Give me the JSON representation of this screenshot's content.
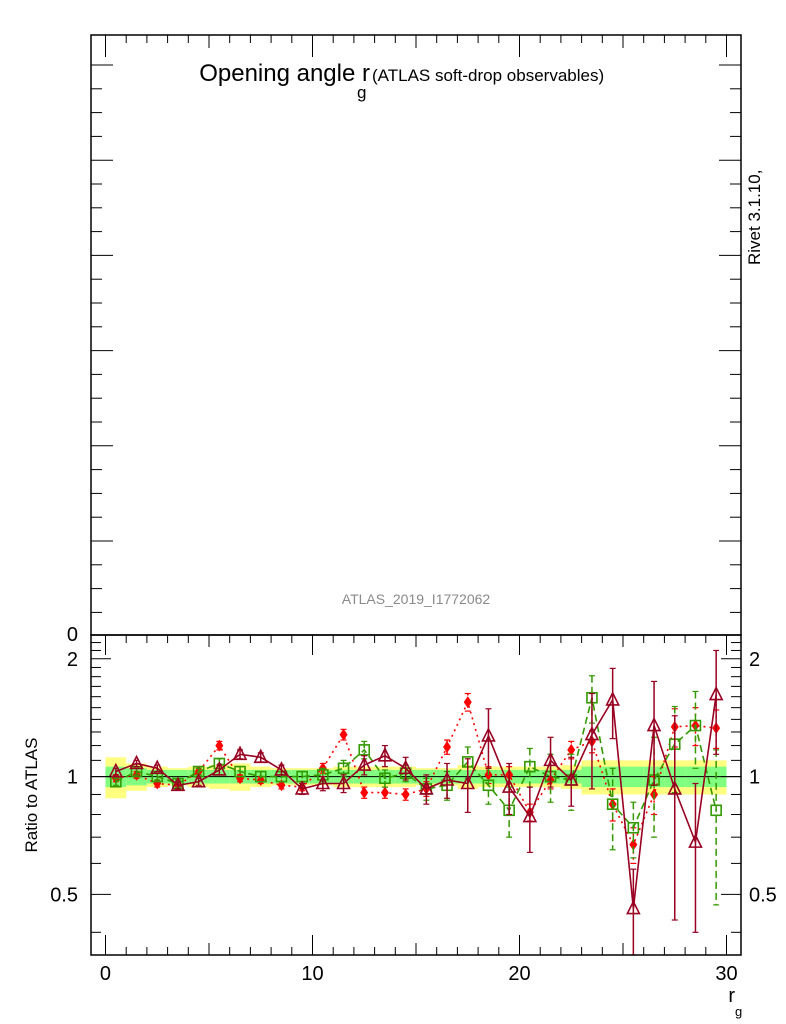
{
  "title": {
    "main": "Opening angle r",
    "sub": "g",
    "note": "(ATLAS soft-drop observables)"
  },
  "watermark": "ATLAS_2019_I1772062",
  "side_label": "Rivet 3.1.10,",
  "top_panel": {
    "ytick_label": "0"
  },
  "colors": {
    "band_outer": "#ffff80",
    "band_inner": "#80ff80",
    "series_diamond": "#ff0000",
    "series_square": "#339900",
    "series_triangle": "#990022"
  },
  "chart_data": {
    "type": "scatter",
    "xlabel": "r",
    "xlabel_sub": "g",
    "ylabel": "Ratio to ATLAS",
    "xlim": [
      -0.7,
      30.7
    ],
    "ylim": [
      0.35,
      2.3
    ],
    "x_ticks": [
      0,
      10,
      20,
      30
    ],
    "x_tick_labels": [
      "0",
      "10",
      "20",
      "30"
    ],
    "y_ticks": [
      0.5,
      1,
      2
    ],
    "y_tick_labels": [
      "0.5",
      "1",
      "2"
    ],
    "x": [
      0.5,
      1.5,
      2.5,
      3.5,
      4.5,
      5.5,
      6.5,
      7.5,
      8.5,
      9.5,
      10.5,
      11.5,
      12.5,
      13.5,
      14.5,
      15.5,
      16.5,
      17.5,
      18.5,
      19.5,
      20.5,
      21.5,
      22.5,
      23.5,
      24.5,
      25.5,
      26.5,
      27.5,
      28.5,
      29.5
    ],
    "reference_band": {
      "inner_half": [
        0.06,
        0.05,
        0.04,
        0.04,
        0.04,
        0.04,
        0.04,
        0.04,
        0.04,
        0.04,
        0.04,
        0.04,
        0.04,
        0.04,
        0.04,
        0.04,
        0.04,
        0.04,
        0.04,
        0.04,
        0.04,
        0.04,
        0.04,
        0.06,
        0.06,
        0.06,
        0.06,
        0.06,
        0.06,
        0.06
      ],
      "outer_half": [
        0.12,
        0.08,
        0.06,
        0.05,
        0.06,
        0.07,
        0.08,
        0.06,
        0.05,
        0.05,
        0.05,
        0.06,
        0.06,
        0.06,
        0.06,
        0.05,
        0.05,
        0.07,
        0.06,
        0.06,
        0.06,
        0.06,
        0.07,
        0.1,
        0.1,
        0.1,
        0.1,
        0.1,
        0.1,
        0.1
      ]
    },
    "series": [
      {
        "style": "diamond-dotted",
        "values": [
          0.99,
          1.01,
          0.96,
          0.95,
          1.03,
          1.2,
          0.99,
          0.98,
          0.95,
          0.94,
          1.05,
          1.28,
          0.91,
          0.91,
          0.9,
          0.93,
          1.19,
          1.55,
          1.01,
          1.01,
          0.81,
          0.98,
          1.17,
          1.23,
          0.85,
          0.67,
          0.9,
          1.34,
          1.35,
          1.33
        ],
        "err": [
          0.02,
          0.02,
          0.02,
          0.02,
          0.02,
          0.03,
          0.02,
          0.02,
          0.02,
          0.02,
          0.03,
          0.04,
          0.03,
          0.03,
          0.03,
          0.04,
          0.05,
          0.08,
          0.05,
          0.05,
          0.04,
          0.05,
          0.06,
          0.08,
          0.08,
          0.07,
          0.1,
          0.15,
          0.15,
          0.15
        ]
      },
      {
        "style": "square-dashed",
        "values": [
          0.97,
          1.03,
          1.0,
          0.96,
          1.03,
          1.08,
          1.03,
          1.0,
          1.0,
          1.0,
          1.01,
          1.05,
          1.17,
          0.99,
          1.02,
          0.93,
          0.95,
          1.09,
          0.95,
          0.82,
          1.06,
          1.0,
          0.98,
          1.59,
          0.85,
          0.74,
          0.98,
          1.21,
          1.35,
          0.82
        ],
        "err": [
          0.02,
          0.02,
          0.02,
          0.02,
          0.02,
          0.03,
          0.03,
          0.03,
          0.03,
          0.03,
          0.04,
          0.05,
          0.06,
          0.05,
          0.05,
          0.06,
          0.08,
          0.1,
          0.1,
          0.12,
          0.12,
          0.14,
          0.16,
          0.22,
          0.2,
          0.12,
          0.28,
          0.3,
          0.3,
          0.35
        ]
      },
      {
        "style": "triangle-solid",
        "values": [
          1.03,
          1.08,
          1.05,
          0.95,
          0.97,
          1.04,
          1.14,
          1.12,
          1.04,
          0.93,
          0.96,
          0.96,
          1.07,
          1.13,
          1.05,
          0.93,
          0.98,
          0.96,
          1.27,
          0.94,
          0.79,
          1.1,
          0.98,
          1.28,
          1.57,
          0.46,
          1.35,
          0.93,
          0.68,
          1.62
        ],
        "err": [
          0.02,
          0.02,
          0.02,
          0.02,
          0.02,
          0.03,
          0.03,
          0.03,
          0.03,
          0.03,
          0.04,
          0.05,
          0.06,
          0.07,
          0.07,
          0.08,
          0.1,
          0.15,
          0.22,
          0.14,
          0.15,
          0.16,
          0.14,
          0.35,
          0.32,
          0.12,
          0.4,
          0.5,
          0.28,
          0.48
        ]
      }
    ]
  }
}
